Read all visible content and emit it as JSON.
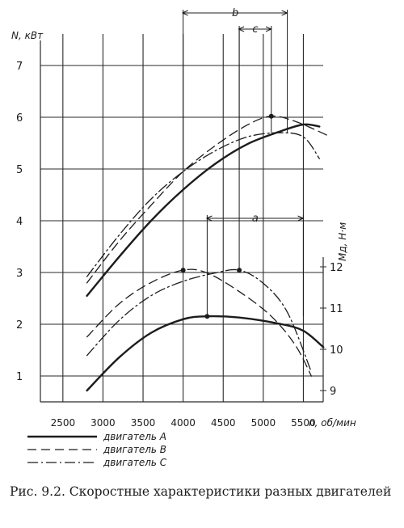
{
  "caption": "Рис. 9.2. Скоростные характеристики разных двигателей",
  "chart_data": {
    "type": "line",
    "x_axis": {
      "label": "n, об/мин",
      "range": [
        2300,
        5800
      ],
      "ticks": [
        2500,
        3000,
        3500,
        4000,
        4500,
        5000,
        5500
      ]
    },
    "y_left": {
      "label": "N, кВт",
      "range": [
        0.5,
        7.5
      ],
      "ticks": [
        1,
        2,
        3,
        4,
        5,
        6,
        7
      ]
    },
    "y_right": {
      "label": "Mд, Н·м",
      "range": [
        8.6,
        12.4
      ],
      "ticks": [
        9,
        10,
        11,
        12
      ]
    },
    "grid": true,
    "legend": {
      "placement": "bottom-left",
      "entries": [
        "двигатель А",
        "двигатель В",
        "двигатель С"
      ]
    },
    "series": [
      {
        "name": "двигатель А",
        "quantity": "N",
        "axis": "left",
        "style": "solid",
        "x": [
          2800,
          3200,
          3600,
          4000,
          4400,
          4800,
          5200,
          5500,
          5700
        ],
        "y": [
          2.55,
          3.3,
          4.0,
          4.6,
          5.1,
          5.48,
          5.72,
          5.86,
          5.82
        ]
      },
      {
        "name": "двигатель В",
        "quantity": "N",
        "axis": "left",
        "style": "dashed",
        "x": [
          2800,
          3200,
          3600,
          4000,
          4400,
          4800,
          5100,
          5400,
          5800
        ],
        "y": [
          2.8,
          3.6,
          4.3,
          4.95,
          5.45,
          5.85,
          6.02,
          5.92,
          5.65
        ]
      },
      {
        "name": "двигатель С",
        "quantity": "N",
        "axis": "left",
        "style": "dashdot",
        "x": [
          2800,
          3200,
          3600,
          4000,
          4400,
          4800,
          5200,
          5500,
          5700
        ],
        "y": [
          2.92,
          3.72,
          4.42,
          4.95,
          5.35,
          5.62,
          5.7,
          5.62,
          5.2
        ]
      },
      {
        "name": "двигатель А",
        "quantity": "M",
        "axis": "right",
        "style": "solid",
        "x": [
          2800,
          3200,
          3600,
          4000,
          4300,
          4700,
          5200,
          5500,
          5750
        ],
        "y": [
          9.0,
          9.8,
          10.4,
          10.73,
          10.8,
          10.77,
          10.62,
          10.45,
          10.05
        ]
      },
      {
        "name": "двигатель В",
        "quantity": "M",
        "axis": "right",
        "style": "dashed",
        "x": [
          2800,
          3200,
          3600,
          4000,
          4300,
          4700,
          5100,
          5400,
          5600
        ],
        "y": [
          10.3,
          11.1,
          11.62,
          11.92,
          11.85,
          11.4,
          10.8,
          10.1,
          9.35
        ]
      },
      {
        "name": "двигатель С",
        "quantity": "M",
        "axis": "right",
        "style": "dashdot",
        "x": [
          2800,
          3200,
          3600,
          4000,
          4400,
          4700,
          5000,
          5300,
          5600
        ],
        "y": [
          9.85,
          10.7,
          11.3,
          11.65,
          11.85,
          11.92,
          11.6,
          10.9,
          9.45
        ]
      }
    ],
    "peak_markers": [
      {
        "series": "двигатель В",
        "quantity": "N",
        "x": 5100,
        "y": 6.02
      },
      {
        "series": "двигатель В",
        "quantity": "M",
        "x": 4000,
        "y": 11.92
      },
      {
        "series": "двигатель С",
        "quantity": "M",
        "x": 4700,
        "y": 11.92
      },
      {
        "series": "двигатель А",
        "quantity": "M",
        "x": 4300,
        "y": 10.8
      }
    ],
    "ranges": [
      {
        "label": "b",
        "x1": 4000,
        "x2": 5300
      },
      {
        "label": "c",
        "x1": 4700,
        "x2": 5100
      },
      {
        "label": "a",
        "x1": 4300,
        "x2": 5500
      }
    ],
    "colors": {
      "ink": "#1c1c1c",
      "grid": "#2a2a2a",
      "background": "#ffffff"
    }
  }
}
